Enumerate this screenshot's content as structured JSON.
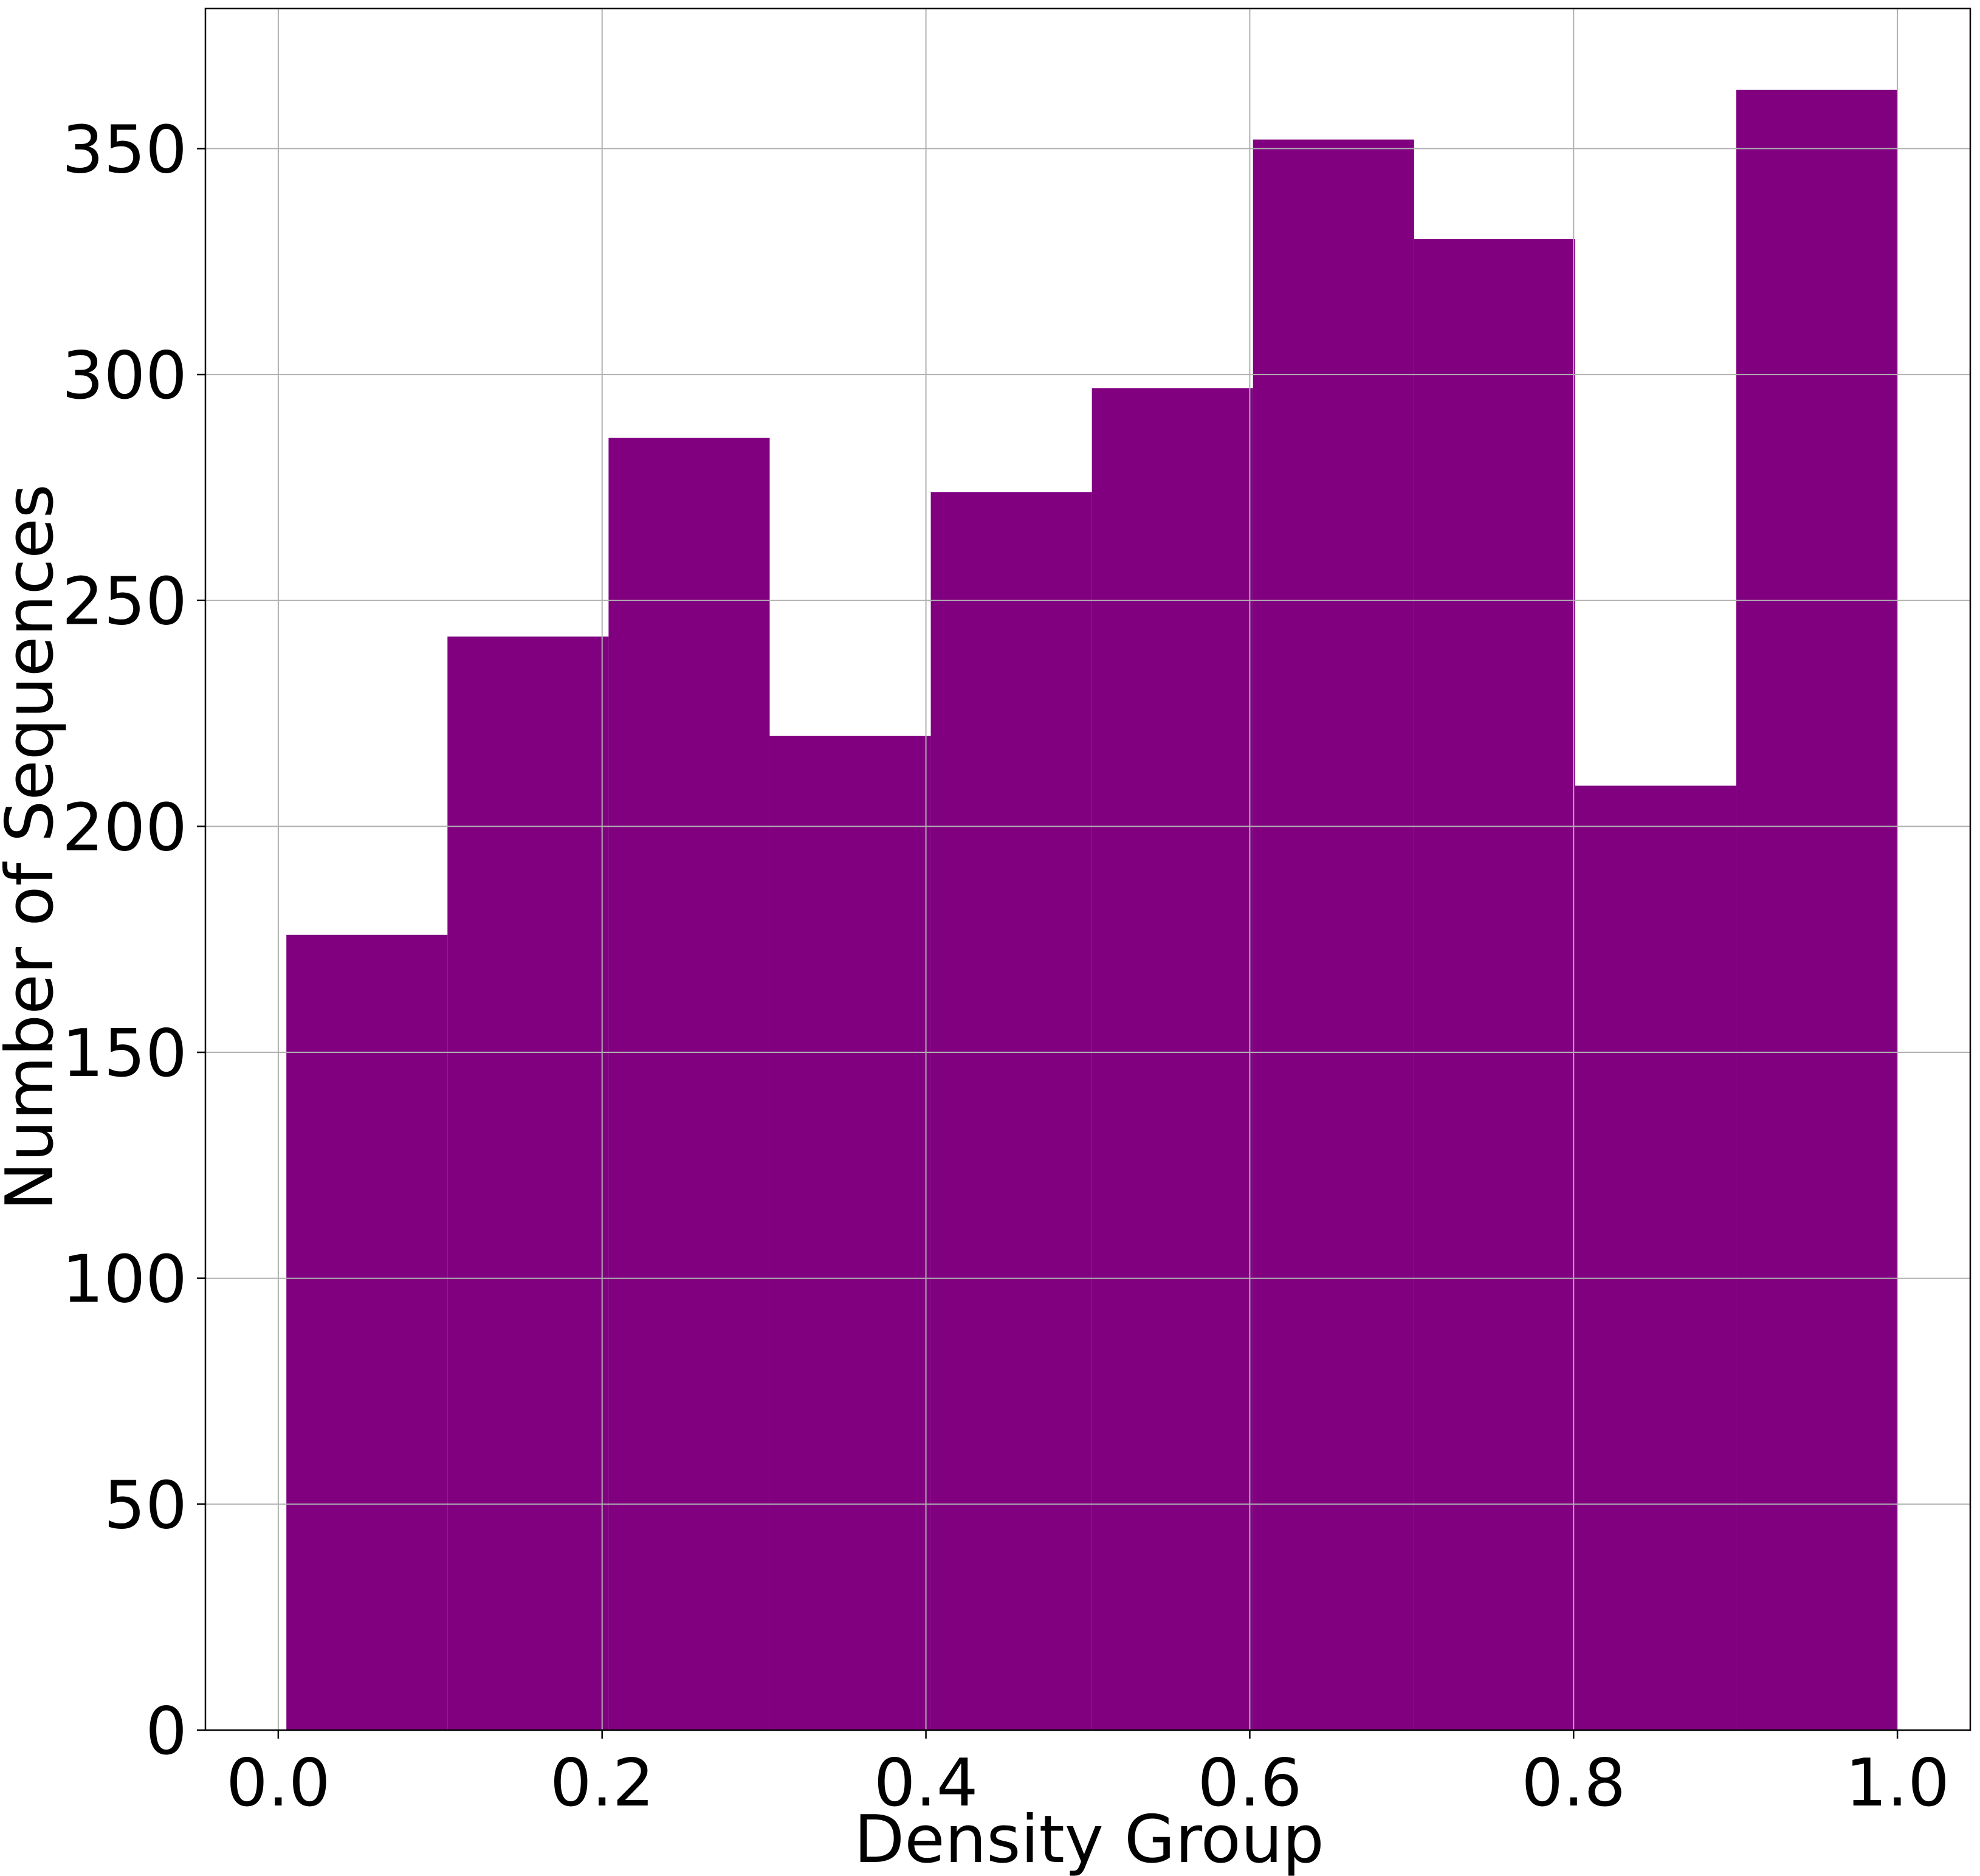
{
  "chart_data": {
    "type": "histogram",
    "title": "",
    "xlabel": "Density Group",
    "ylabel": "Number of Sequences",
    "xlim": [
      -0.045,
      1.045
    ],
    "ylim": [
      0,
      381
    ],
    "xticks": [
      0.0,
      0.2,
      0.4,
      0.6,
      0.8,
      1.0
    ],
    "xtick_labels": [
      "0.0",
      "0.2",
      "0.4",
      "0.6",
      "0.8",
      "1.0"
    ],
    "yticks": [
      0,
      50,
      100,
      150,
      200,
      250,
      300,
      350
    ],
    "ytick_labels": [
      "0",
      "50",
      "100",
      "150",
      "200",
      "250",
      "300",
      "350"
    ],
    "grid": true,
    "bar_color": "#800080",
    "bins": [
      {
        "x0": 0.005,
        "x1": 0.1045,
        "value": 176
      },
      {
        "x0": 0.1045,
        "x1": 0.204,
        "value": 242
      },
      {
        "x0": 0.204,
        "x1": 0.3035,
        "value": 286
      },
      {
        "x0": 0.3035,
        "x1": 0.403,
        "value": 220
      },
      {
        "x0": 0.403,
        "x1": 0.5025,
        "value": 274
      },
      {
        "x0": 0.5025,
        "x1": 0.602,
        "value": 297
      },
      {
        "x0": 0.602,
        "x1": 0.7015,
        "value": 352
      },
      {
        "x0": 0.7015,
        "x1": 0.801,
        "value": 330
      },
      {
        "x0": 0.801,
        "x1": 0.9005,
        "value": 209
      },
      {
        "x0": 0.9005,
        "x1": 1.0,
        "value": 363
      }
    ]
  }
}
